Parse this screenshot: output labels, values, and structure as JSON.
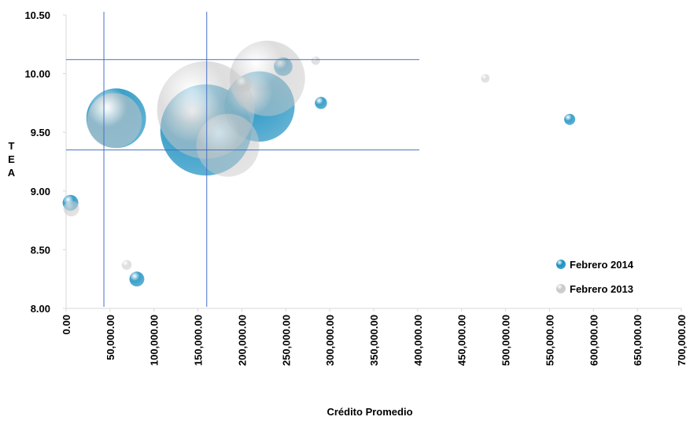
{
  "chart_data": {
    "type": "bubble",
    "xlabel": "Crédito Promedio",
    "ylabel": "TEA",
    "xlim": [
      0,
      700000
    ],
    "xticks": [
      {
        "value": 0,
        "label": "0.00"
      },
      {
        "value": 50000,
        "label": "50,000.00"
      },
      {
        "value": 100000,
        "label": "100,000.00"
      },
      {
        "value": 150000,
        "label": "150,000.00"
      },
      {
        "value": 200000,
        "label": "200,000.00"
      },
      {
        "value": 250000,
        "label": "250,000.00"
      },
      {
        "value": 300000,
        "label": "300,000.00"
      },
      {
        "value": 350000,
        "label": "350,000.00"
      },
      {
        "value": 400000,
        "label": "400,000.00"
      },
      {
        "value": 450000,
        "label": "450,000.00"
      },
      {
        "value": 500000,
        "label": "500,000.00"
      },
      {
        "value": 550000,
        "label": "550,000.00"
      },
      {
        "value": 600000,
        "label": "600,000.00"
      },
      {
        "value": 650000,
        "label": "650,000.00"
      },
      {
        "value": 700000,
        "label": "700,000.00"
      }
    ],
    "ylim": [
      8,
      10.5
    ],
    "yticks": [
      {
        "value": 8,
        "label": "8.00"
      },
      {
        "value": 8.5,
        "label": "8.50"
      },
      {
        "value": 9,
        "label": "9.00"
      },
      {
        "value": 9.5,
        "label": "9.50"
      },
      {
        "value": 10,
        "label": "10.00"
      },
      {
        "value": 10.5,
        "label": "10.50"
      }
    ],
    "hlines": [
      10.12,
      9.35
    ],
    "vlines": [
      43000,
      160000
    ],
    "series": [
      {
        "name": "Febrero 2014",
        "color": "#1a8fc0",
        "x": [
          5000,
          80500,
          57000,
          159000,
          220000,
          247000,
          290000,
          573000
        ],
        "values": [
          8.9,
          8.25,
          9.62,
          9.52,
          9.72,
          10.06,
          9.75,
          9.61
        ],
        "sizes": [
          10,
          9,
          144,
          336,
          200,
          14,
          6,
          5
        ]
      },
      {
        "name": "Febrero 2013",
        "color": "#c8c8c8",
        "x": [
          6000,
          69000,
          55000,
          159000,
          184000,
          229000,
          202000,
          284000,
          477000
        ],
        "values": [
          8.85,
          8.37,
          9.6,
          9.69,
          9.39,
          9.96,
          9.91,
          10.11,
          9.96
        ],
        "sizes": [
          10,
          4,
          122,
          384,
          160,
          230,
          10,
          3,
          3
        ]
      }
    ],
    "legend": "bottom-right"
  }
}
